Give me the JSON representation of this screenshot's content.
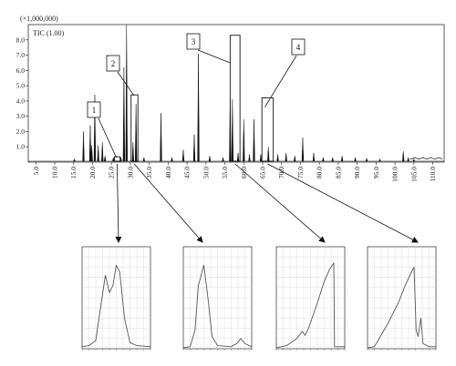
{
  "chart_data": [
    {
      "type": "line",
      "title": "",
      "scale_label": "(×1,000,000)",
      "series_label": "TIC (1.00)",
      "xlabel": "",
      "ylabel": "",
      "xlim": [
        3,
        113
      ],
      "ylim": [
        0,
        9.0
      ],
      "x_ticks": [
        "5.0",
        "10.0",
        "15.0",
        "20.0",
        "25.0",
        "30.0",
        "35.0",
        "40.0",
        "45.0",
        "50.0",
        "55.0",
        "60.0",
        "65.0",
        "70.0",
        "75.0",
        "80.0",
        "85.0",
        "90.0",
        "95.0",
        "100.0",
        "105.0",
        "110.0"
      ],
      "y_ticks": [
        "1.0",
        "2.0",
        "3.0",
        "4.0",
        "5.0",
        "6.0",
        "7.0",
        "8.0"
      ],
      "grid": false,
      "peaks": [
        {
          "x": 15.2,
          "y": 0.2
        },
        {
          "x": 17.6,
          "y": 2.0
        },
        {
          "x": 19.4,
          "y": 2.4
        },
        {
          "x": 19.8,
          "y": 1.1
        },
        {
          "x": 20.6,
          "y": 4.4
        },
        {
          "x": 21.5,
          "y": 1.1
        },
        {
          "x": 22.6,
          "y": 1.3
        },
        {
          "x": 23.3,
          "y": 0.4
        },
        {
          "x": 25.5,
          "y": 0.3
        },
        {
          "x": 27.5,
          "y": 0.3
        },
        {
          "x": 28.3,
          "y": 6.2
        },
        {
          "x": 29.0,
          "y": 9.0
        },
        {
          "x": 30.7,
          "y": 1.3
        },
        {
          "x": 31.5,
          "y": 3.8
        },
        {
          "x": 33.6,
          "y": 0.3
        },
        {
          "x": 38.1,
          "y": 3.2
        },
        {
          "x": 41.0,
          "y": 0.3
        },
        {
          "x": 44.0,
          "y": 0.8
        },
        {
          "x": 46.9,
          "y": 1.8
        },
        {
          "x": 48.0,
          "y": 7.1
        },
        {
          "x": 51.0,
          "y": 0.4
        },
        {
          "x": 54.5,
          "y": 0.3
        },
        {
          "x": 56.4,
          "y": 4.2
        },
        {
          "x": 57.0,
          "y": 4.1
        },
        {
          "x": 58.5,
          "y": 0.6
        },
        {
          "x": 60.0,
          "y": 2.8
        },
        {
          "x": 61.5,
          "y": 0.5
        },
        {
          "x": 62.7,
          "y": 2.8
        },
        {
          "x": 64.5,
          "y": 0.5
        },
        {
          "x": 66.5,
          "y": 1.0
        },
        {
          "x": 69.0,
          "y": 0.5
        },
        {
          "x": 71.2,
          "y": 0.6
        },
        {
          "x": 73.5,
          "y": 0.4
        },
        {
          "x": 75.6,
          "y": 1.6
        },
        {
          "x": 78.5,
          "y": 0.6
        },
        {
          "x": 81.0,
          "y": 0.3
        },
        {
          "x": 83.5,
          "y": 0.3
        },
        {
          "x": 86.0,
          "y": 0.4
        },
        {
          "x": 89.5,
          "y": 0.3
        },
        {
          "x": 92.5,
          "y": 0.25
        },
        {
          "x": 96.0,
          "y": 0.2
        },
        {
          "x": 102.2,
          "y": 0.7
        },
        {
          "x": 103.5,
          "y": 0.3
        },
        {
          "x": 105.0,
          "y": 0.2
        }
      ],
      "boxes": [
        {
          "label": "1",
          "x0": 25.8,
          "x1": 27.3,
          "y": 0.35
        },
        {
          "label": "2",
          "x0": 30.2,
          "x1": 32.0,
          "y": 4.4
        },
        {
          "label": "3",
          "x0": 56.4,
          "x1": 59.0,
          "y": 8.3
        },
        {
          "label": "4",
          "x0": 64.8,
          "x1": 67.8,
          "y": 4.2
        }
      ],
      "callouts": [
        "1",
        "2",
        "3",
        "4"
      ]
    },
    {
      "type": "line",
      "title": "",
      "insets": [
        {
          "name": "",
          "shape": [
            [
              0,
              0.02
            ],
            [
              0.1,
              0.03
            ],
            [
              0.2,
              0.08
            ],
            [
              0.28,
              0.45
            ],
            [
              0.34,
              0.72
            ],
            [
              0.4,
              0.55
            ],
            [
              0.45,
              0.62
            ],
            [
              0.5,
              0.82
            ],
            [
              0.55,
              0.75
            ],
            [
              0.62,
              0.3
            ],
            [
              0.7,
              0.06
            ],
            [
              0.8,
              0.03
            ],
            [
              1,
              0.02
            ]
          ]
        },
        {
          "name": "",
          "shape": [
            [
              0,
              0.01
            ],
            [
              0.1,
              0.02
            ],
            [
              0.17,
              0.18
            ],
            [
              0.22,
              0.62
            ],
            [
              0.3,
              0.82
            ],
            [
              0.36,
              0.5
            ],
            [
              0.42,
              0.12
            ],
            [
              0.5,
              0.03
            ],
            [
              0.7,
              0.02
            ],
            [
              0.78,
              0.05
            ],
            [
              0.84,
              0.1
            ],
            [
              0.9,
              0.05
            ],
            [
              1,
              0.02
            ]
          ]
        },
        {
          "name": "",
          "shape": [
            [
              0,
              0.01
            ],
            [
              0.15,
              0.03
            ],
            [
              0.3,
              0.1
            ],
            [
              0.38,
              0.17
            ],
            [
              0.42,
              0.13
            ],
            [
              0.47,
              0.2
            ],
            [
              0.6,
              0.45
            ],
            [
              0.7,
              0.66
            ],
            [
              0.78,
              0.78
            ],
            [
              0.84,
              0.84
            ],
            [
              0.85,
              0.02
            ],
            [
              1,
              0.02
            ]
          ]
        },
        {
          "name": "",
          "shape": [
            [
              0,
              0.01
            ],
            [
              0.1,
              0.02
            ],
            [
              0.3,
              0.25
            ],
            [
              0.45,
              0.45
            ],
            [
              0.55,
              0.62
            ],
            [
              0.64,
              0.75
            ],
            [
              0.68,
              0.8
            ],
            [
              0.71,
              0.18
            ],
            [
              0.74,
              0.12
            ],
            [
              0.78,
              0.3
            ],
            [
              0.81,
              0.05
            ],
            [
              0.9,
              0.02
            ],
            [
              1,
              0.02
            ]
          ]
        }
      ]
    }
  ]
}
